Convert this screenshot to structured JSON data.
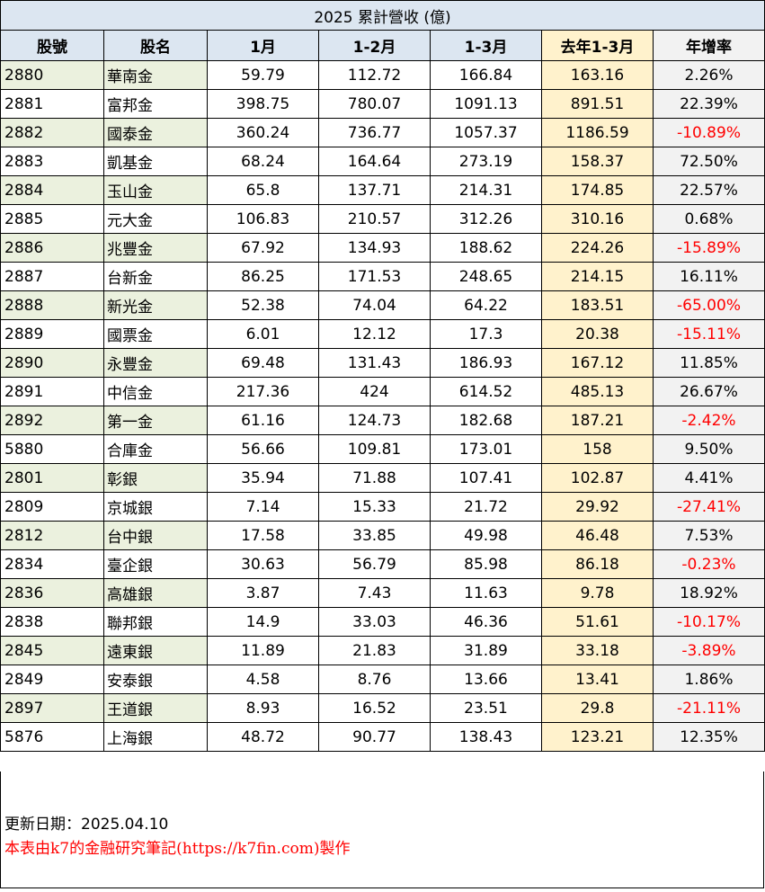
{
  "title": "2025 累計營收 (億)",
  "headers": [
    "股號",
    "股名",
    "1月",
    "1-2月",
    "1-3月",
    "去年1-3月",
    "年增率"
  ],
  "rows": [
    {
      "code": "2880",
      "name": "華南金",
      "m1": "59.79",
      "m12": "112.72",
      "m13": "166.84",
      "prev": "163.16",
      "yoy": "2.26%",
      "neg": false
    },
    {
      "code": "2881",
      "name": "富邦金",
      "m1": "398.75",
      "m12": "780.07",
      "m13": "1091.13",
      "prev": "891.51",
      "yoy": "22.39%",
      "neg": false
    },
    {
      "code": "2882",
      "name": "國泰金",
      "m1": "360.24",
      "m12": "736.77",
      "m13": "1057.37",
      "prev": "1186.59",
      "yoy": "-10.89%",
      "neg": true
    },
    {
      "code": "2883",
      "name": "凱基金",
      "m1": "68.24",
      "m12": "164.64",
      "m13": "273.19",
      "prev": "158.37",
      "yoy": "72.50%",
      "neg": false
    },
    {
      "code": "2884",
      "name": "玉山金",
      "m1": "65.8",
      "m12": "137.71",
      "m13": "214.31",
      "prev": "174.85",
      "yoy": "22.57%",
      "neg": false
    },
    {
      "code": "2885",
      "name": "元大金",
      "m1": "106.83",
      "m12": "210.57",
      "m13": "312.26",
      "prev": "310.16",
      "yoy": "0.68%",
      "neg": false
    },
    {
      "code": "2886",
      "name": "兆豐金",
      "m1": "67.92",
      "m12": "134.93",
      "m13": "188.62",
      "prev": "224.26",
      "yoy": "-15.89%",
      "neg": true
    },
    {
      "code": "2887",
      "name": "台新金",
      "m1": "86.25",
      "m12": "171.53",
      "m13": "248.65",
      "prev": "214.15",
      "yoy": "16.11%",
      "neg": false
    },
    {
      "code": "2888",
      "name": "新光金",
      "m1": "52.38",
      "m12": "74.04",
      "m13": "64.22",
      "prev": "183.51",
      "yoy": "-65.00%",
      "neg": true
    },
    {
      "code": "2889",
      "name": "國票金",
      "m1": "6.01",
      "m12": "12.12",
      "m13": "17.3",
      "prev": "20.38",
      "yoy": "-15.11%",
      "neg": true
    },
    {
      "code": "2890",
      "name": "永豐金",
      "m1": "69.48",
      "m12": "131.43",
      "m13": "186.93",
      "prev": "167.12",
      "yoy": "11.85%",
      "neg": false
    },
    {
      "code": "2891",
      "name": "中信金",
      "m1": "217.36",
      "m12": "424",
      "m13": "614.52",
      "prev": "485.13",
      "yoy": "26.67%",
      "neg": false
    },
    {
      "code": "2892",
      "name": "第一金",
      "m1": "61.16",
      "m12": "124.73",
      "m13": "182.68",
      "prev": "187.21",
      "yoy": "-2.42%",
      "neg": true
    },
    {
      "code": "5880",
      "name": "合庫金",
      "m1": "56.66",
      "m12": "109.81",
      "m13": "173.01",
      "prev": "158",
      "yoy": "9.50%",
      "neg": false
    },
    {
      "code": "2801",
      "name": "彰銀",
      "m1": "35.94",
      "m12": "71.88",
      "m13": "107.41",
      "prev": "102.87",
      "yoy": "4.41%",
      "neg": false
    },
    {
      "code": "2809",
      "name": "京城銀",
      "m1": "7.14",
      "m12": "15.33",
      "m13": "21.72",
      "prev": "29.92",
      "yoy": "-27.41%",
      "neg": true
    },
    {
      "code": "2812",
      "name": "台中銀",
      "m1": "17.58",
      "m12": "33.85",
      "m13": "49.98",
      "prev": "46.48",
      "yoy": "7.53%",
      "neg": false
    },
    {
      "code": "2834",
      "name": "臺企銀",
      "m1": "30.63",
      "m12": "56.79",
      "m13": "85.98",
      "prev": "86.18",
      "yoy": "-0.23%",
      "neg": true
    },
    {
      "code": "2836",
      "name": "高雄銀",
      "m1": "3.87",
      "m12": "7.43",
      "m13": "11.63",
      "prev": "9.78",
      "yoy": "18.92%",
      "neg": false
    },
    {
      "code": "2838",
      "name": "聯邦銀",
      "m1": "14.9",
      "m12": "33.03",
      "m13": "46.36",
      "prev": "51.61",
      "yoy": "-10.17%",
      "neg": true
    },
    {
      "code": "2845",
      "name": "遠東銀",
      "m1": "11.89",
      "m12": "21.83",
      "m13": "31.89",
      "prev": "33.18",
      "yoy": "-3.89%",
      "neg": true
    },
    {
      "code": "2849",
      "name": "安泰銀",
      "m1": "4.58",
      "m12": "8.76",
      "m13": "13.66",
      "prev": "13.41",
      "yoy": "1.86%",
      "neg": false
    },
    {
      "code": "2897",
      "name": "王道銀",
      "m1": "8.93",
      "m12": "16.52",
      "m13": "23.51",
      "prev": "29.8",
      "yoy": "-21.11%",
      "neg": true
    },
    {
      "code": "5876",
      "name": "上海銀",
      "m1": "48.72",
      "m12": "90.77",
      "m13": "138.43",
      "prev": "123.21",
      "yoy": "12.35%",
      "neg": false
    }
  ],
  "footer": {
    "updated": "更新日期：2025.04.10",
    "credit": "本表由k7的金融研究筆記(https://k7fin.com)製作"
  },
  "colors": {
    "header_bg": "#dce6f1",
    "alt_row_bg": "#ebf1de",
    "prev_col_bg": "#fff2cc",
    "yoy_col_bg": "#f2f2f2",
    "negative_text": "#ff0000"
  }
}
